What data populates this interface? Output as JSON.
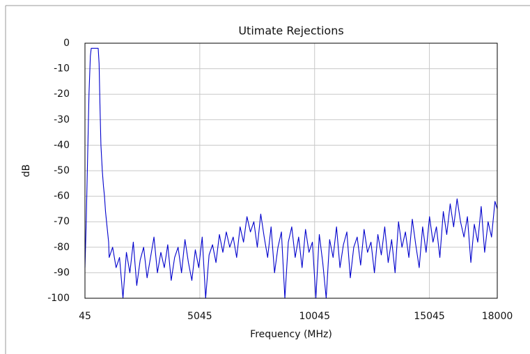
{
  "chart_data": {
    "type": "line",
    "title": "Utimate Rejections",
    "x_label": "Frequency (MHz)",
    "y_label": "dB",
    "color": "#0000cc",
    "xlim": [
      45,
      18000
    ],
    "xticks": [
      45,
      5045,
      10045,
      15045,
      18000
    ],
    "ylim": [
      -100,
      0
    ],
    "yticks": [
      0,
      -10,
      -20,
      -30,
      -40,
      -50,
      -60,
      -70,
      -80,
      -90,
      -100
    ],
    "grid": true,
    "x": [
      45,
      100,
      160,
      220,
      280,
      318,
      400,
      500,
      621,
      660,
      700,
      740,
      800,
      850,
      895,
      940,
      985,
      1030,
      1075,
      1100,
      1250,
      1400,
      1550,
      1700,
      1850,
      2000,
      2150,
      2300,
      2450,
      2600,
      2750,
      2900,
      3050,
      3200,
      3350,
      3500,
      3650,
      3800,
      3950,
      4100,
      4250,
      4400,
      4550,
      4700,
      4850,
      5000,
      5150,
      5300,
      5450,
      5600,
      5750,
      5900,
      6050,
      6200,
      6350,
      6500,
      6650,
      6800,
      6950,
      7100,
      7250,
      7400,
      7550,
      7700,
      7850,
      8000,
      8150,
      8300,
      8450,
      8600,
      8750,
      8900,
      9050,
      9200,
      9350,
      9500,
      9650,
      9800,
      9950,
      10100,
      10250,
      10400,
      10550,
      10700,
      10850,
      11000,
      11150,
      11300,
      11450,
      11600,
      11750,
      11900,
      12050,
      12200,
      12350,
      12500,
      12650,
      12800,
      12950,
      13100,
      13250,
      13400,
      13550,
      13700,
      13850,
      14000,
      14150,
      14300,
      14450,
      14600,
      14750,
      14900,
      15050,
      15200,
      15350,
      15500,
      15650,
      15800,
      15950,
      16100,
      16250,
      16400,
      16550,
      16700,
      16850,
      17000,
      17150,
      17300,
      17450,
      17600,
      17750,
      17900,
      18000
    ],
    "values": [
      -88,
      -70,
      -45,
      -20,
      -5,
      -2,
      -2,
      -2,
      -2,
      -8,
      -25,
      -40,
      -50,
      -56,
      -60,
      -66,
      -70,
      -74,
      -78,
      -84,
      -80,
      -88,
      -84,
      -100,
      -82,
      -90,
      -78,
      -95,
      -85,
      -80,
      -92,
      -84,
      -76,
      -90,
      -82,
      -88,
      -79,
      -93,
      -84,
      -80,
      -90,
      -77,
      -86,
      -93,
      -81,
      -88,
      -76,
      -100,
      -83,
      -79,
      -86,
      -75,
      -82,
      -74,
      -80,
      -76,
      -84,
      -72,
      -78,
      -68,
      -74,
      -70,
      -80,
      -67,
      -76,
      -84,
      -72,
      -90,
      -80,
      -74,
      -100,
      -78,
      -72,
      -84,
      -76,
      -88,
      -73,
      -82,
      -78,
      -100,
      -75,
      -86,
      -100,
      -77,
      -84,
      -72,
      -88,
      -79,
      -74,
      -92,
      -80,
      -76,
      -87,
      -73,
      -82,
      -78,
      -90,
      -75,
      -83,
      -72,
      -86,
      -77,
      -90,
      -70,
      -80,
      -74,
      -84,
      -69,
      -79,
      -88,
      -72,
      -82,
      -68,
      -78,
      -72,
      -84,
      -66,
      -75,
      -63,
      -72,
      -61,
      -70,
      -76,
      -68,
      -86,
      -71,
      -78,
      -64,
      -82,
      -70,
      -76,
      -62,
      -65
    ]
  }
}
